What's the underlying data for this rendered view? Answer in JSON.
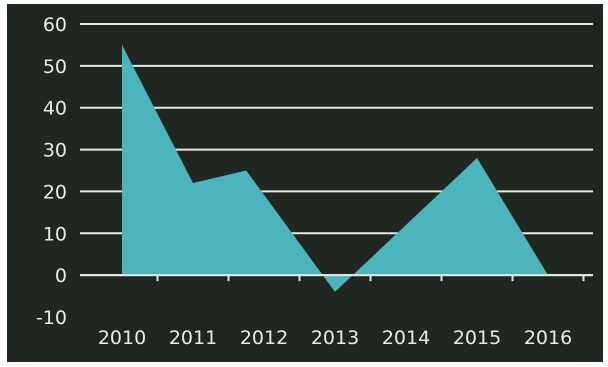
{
  "chart_data": {
    "type": "area",
    "title": "",
    "xlabel": "",
    "ylabel": "",
    "x": [
      "2010",
      "2011",
      "2012",
      "2013",
      "2014",
      "2015",
      "2016"
    ],
    "y_ticks": [
      "60",
      "50",
      "40",
      "30",
      "20",
      "10",
      "0",
      "-10"
    ],
    "ylim": [
      -10,
      60
    ],
    "grid": true,
    "points": [
      {
        "x": 2010.0,
        "y": 55
      },
      {
        "x": 2011.0,
        "y": 22
      },
      {
        "x": 2011.75,
        "y": 25
      },
      {
        "x": 2013.0,
        "y": -4
      },
      {
        "x": 2015.0,
        "y": 28
      },
      {
        "x": 2016.0,
        "y": 0
      }
    ],
    "colors": {
      "background": "#1f2720",
      "area": "#4cb4bd",
      "grid": "#e6e8e3",
      "text": "#e9ece6"
    }
  }
}
